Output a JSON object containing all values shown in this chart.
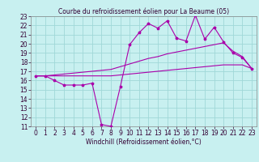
{
  "title": "Courbe du refroidissement éolien pour La Beaume (05)",
  "xlabel": "Windchill (Refroidissement éolien,°C)",
  "bg_color": "#c8f0f0",
  "grid_color": "#a0d8d8",
  "line_color": "#aa00aa",
  "x_data": [
    0,
    1,
    2,
    3,
    4,
    5,
    6,
    7,
    8,
    9,
    10,
    11,
    12,
    13,
    14,
    15,
    16,
    17,
    18,
    19,
    20,
    21,
    22,
    23
  ],
  "y_scatter": [
    16.5,
    16.5,
    16.0,
    15.5,
    15.5,
    15.5,
    15.7,
    11.2,
    11.0,
    15.3,
    19.9,
    21.2,
    22.2,
    21.7,
    22.5,
    20.6,
    20.3,
    23.1,
    20.5,
    21.8,
    20.2,
    19.0,
    18.5,
    17.3
  ],
  "y_upper": [
    16.5,
    16.5,
    16.6,
    16.7,
    16.8,
    16.9,
    17.0,
    17.1,
    17.2,
    17.5,
    17.8,
    18.1,
    18.4,
    18.6,
    18.9,
    19.1,
    19.3,
    19.5,
    19.7,
    19.9,
    20.1,
    19.2,
    18.6,
    17.3
  ],
  "y_lower": [
    16.5,
    16.5,
    16.5,
    16.5,
    16.5,
    16.5,
    16.5,
    16.5,
    16.5,
    16.6,
    16.7,
    16.8,
    16.9,
    17.0,
    17.1,
    17.2,
    17.3,
    17.4,
    17.5,
    17.6,
    17.7,
    17.7,
    17.7,
    17.3
  ],
  "xlim": [
    -0.5,
    23.5
  ],
  "ylim": [
    11,
    23
  ],
  "xticks": [
    0,
    1,
    2,
    3,
    4,
    5,
    6,
    7,
    8,
    9,
    10,
    11,
    12,
    13,
    14,
    15,
    16,
    17,
    18,
    19,
    20,
    21,
    22,
    23
  ],
  "yticks": [
    11,
    12,
    13,
    14,
    15,
    16,
    17,
    18,
    19,
    20,
    21,
    22,
    23
  ],
  "tick_fontsize": 5.5,
  "xlabel_fontsize": 5.5,
  "title_fontsize": 5.5
}
